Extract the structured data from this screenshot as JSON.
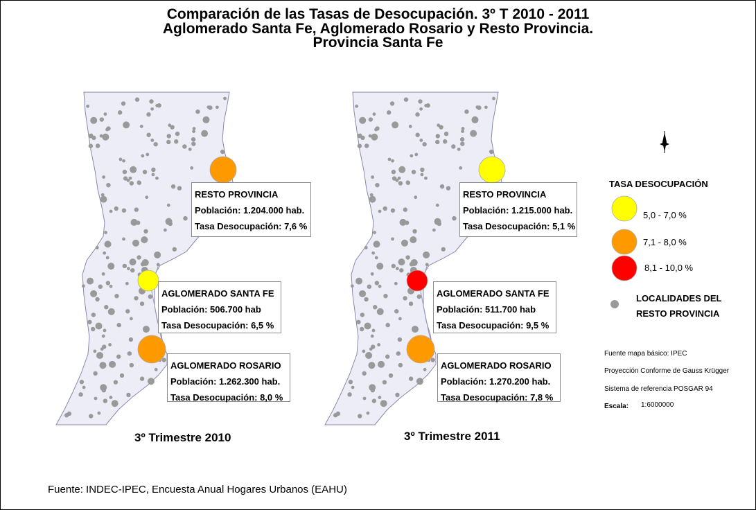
{
  "title": {
    "line1": "Comparación de las Tasas de Desocupación. 3º T 2010 - 2011",
    "line2": "Aglomerado Santa Fe, Aglomerado Rosario y Resto Provincia.",
    "line3": "Provincia Santa Fe"
  },
  "maps": [
    {
      "caption": "3º Trimestre 2010",
      "regions": [
        {
          "name": "RESTO PROVINCIA",
          "poblacion": "Población: 1.204.000 hab.",
          "tasa": "Tasa Desocupación: 7,6 %",
          "rate": 7.6,
          "class_color": "#ff9900"
        },
        {
          "name": "AGLOMERADO SANTA FE",
          "poblacion": "Población: 506.700 hab",
          "tasa": "Tasa Desocupación: 6,5 %",
          "rate": 6.5,
          "class_color": "#ffff00"
        },
        {
          "name": "AGLOMERADO ROSARIO",
          "poblacion": "Población: 1.262.300 hab.",
          "tasa": "Tasa Desocupación: 8,0 %",
          "rate": 8.0,
          "class_color": "#ff9900"
        }
      ]
    },
    {
      "caption": "3º Trimestre 2011",
      "regions": [
        {
          "name": "RESTO PROVINCIA",
          "poblacion": "Población: 1.215.000 hab.",
          "tasa": "Tasa Desocupación: 5,1 %",
          "rate": 5.1,
          "class_color": "#ffff00"
        },
        {
          "name": "AGLOMERADO SANTA FE",
          "poblacion": "Población: 511.700 hab",
          "tasa": "Tasa Desocupación: 9,5 %",
          "rate": 9.5,
          "class_color": "#ff0000"
        },
        {
          "name": "AGLOMERADO ROSARIO",
          "poblacion": "Población: 1.270.200 hab.",
          "tasa": "Tasa Desocupación: 7,8 %",
          "rate": 7.8,
          "class_color": "#ff9900"
        }
      ]
    }
  ],
  "legend": {
    "title": "TASA DESOCUPACIÓN",
    "classes": [
      {
        "label": "5,0 - 7,0 %",
        "color": "#ffff00"
      },
      {
        "label": "7,1 - 8,0 %",
        "color": "#ff9900"
      },
      {
        "label": "8,1 - 10,0 %",
        "color": "#ff0000"
      }
    ],
    "localidades_line1": "LOCALIDADES DEL",
    "localidades_line2": "RESTO PROVINCIA",
    "localidades_color": "#999999"
  },
  "map_colors": {
    "province_fill": "#ededf7",
    "province_stroke": "#8888aa"
  },
  "meta": {
    "fuente_mapa": "Fuente mapa básico: IPEC",
    "proyeccion": "Proyección Conforme de Gauss Krügger",
    "sistema": "Sistema de referencia POSGAR 94",
    "escala_label": "Escala:",
    "escala_value": "1:6000000"
  },
  "source": "Fuente: INDEC-IPEC, Encuesta Anual Hogares Urbanos (EAHU)"
}
